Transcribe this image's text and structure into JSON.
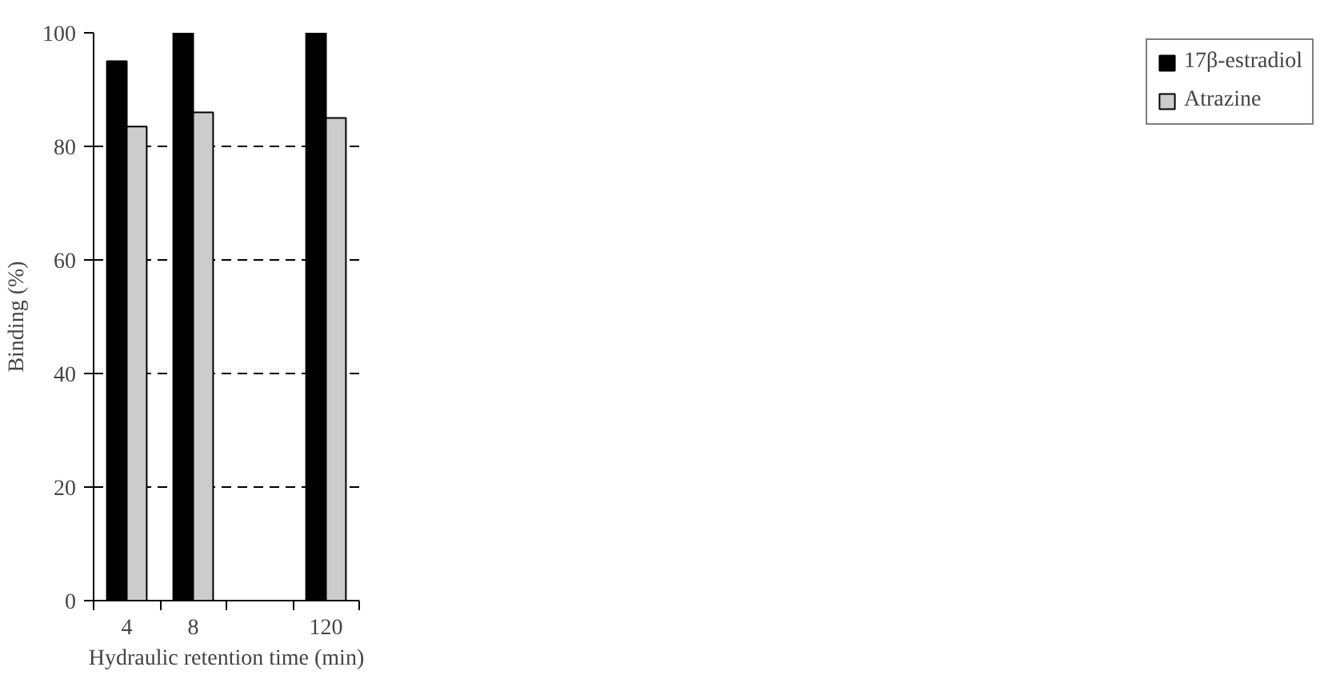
{
  "chart_data": {
    "type": "bar",
    "xlabel": "Hydraulic retention time (min)",
    "ylabel": "Binding (%)",
    "categories": [
      "4",
      "8",
      null,
      "120"
    ],
    "series": [
      {
        "name": "17β-estradiol",
        "color": "#000000",
        "values": [
          95,
          100,
          null,
          100
        ]
      },
      {
        "name": "Atrazine",
        "color": "#cccccc",
        "values": [
          83.5,
          86,
          null,
          85
        ]
      }
    ],
    "ylim": [
      0,
      100
    ],
    "yticks": [
      0,
      20,
      40,
      60,
      80,
      100
    ],
    "grid": "y",
    "legend": "right"
  }
}
